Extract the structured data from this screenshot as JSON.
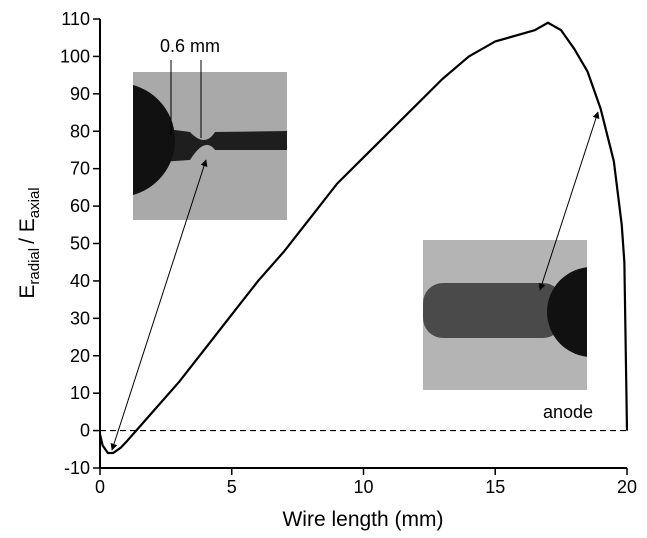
{
  "chart_data": {
    "type": "line",
    "x_label": "Wire length  (mm)",
    "y_label": [
      "E",
      "radial",
      "/ E",
      "axial"
    ],
    "x": [
      0,
      0.1,
      0.3,
      0.5,
      0.8,
      1,
      1.5,
      2,
      3,
      4,
      5,
      6,
      7,
      8,
      9,
      10,
      11,
      12,
      13,
      14,
      15,
      16,
      16.5,
      17,
      17.5,
      18,
      18.5,
      19,
      19.5,
      19.8,
      19.9,
      20
    ],
    "series": [
      {
        "color": "#000000",
        "values": [
          -1,
          -4,
          -6,
          -6,
          -4.5,
          -3,
          1,
          5,
          13,
          22,
          31,
          40,
          48,
          57,
          66,
          73,
          80,
          87,
          94,
          100,
          104,
          106,
          107,
          109,
          107,
          102,
          96,
          86,
          72,
          55,
          45,
          0
        ]
      }
    ],
    "hline": 0,
    "xlim": [
      0,
      20
    ],
    "xticks": [
      0,
      5,
      10,
      15,
      20
    ],
    "ylim": [
      -10,
      110
    ],
    "yticks": [
      -10,
      0,
      10,
      20,
      30,
      40,
      50,
      60,
      70,
      80,
      90,
      100,
      110
    ],
    "annotations": [
      "0.6 mm",
      "anode"
    ]
  }
}
